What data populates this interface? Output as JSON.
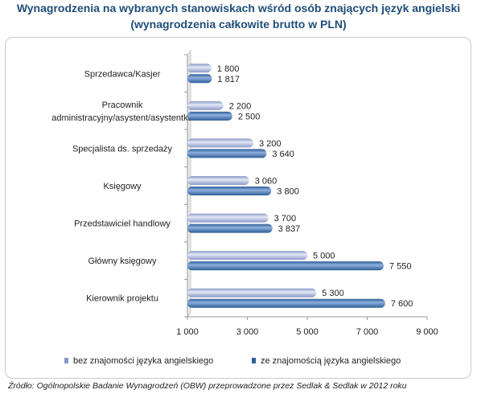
{
  "title_line1": "Wynagrodzenia na wybranych stanowiskach wśród osób znających język angielski",
  "title_line2": "(wynagrodzenia całkowite brutto w PLN)",
  "source": "Źródło: Ogólnopolskie Badanie Wynagrodzeń (OBW) przeprowadzone przez Sedlak & Sedlak w 2012 roku",
  "colors": {
    "series1_dark": "#8b99c6",
    "series1_light": "#e3e8f6",
    "series2_dark": "#2c5d96",
    "series2_light": "#8fb0dd",
    "title": "#1f4e79"
  },
  "chart_data": {
    "type": "bar",
    "orientation": "horizontal",
    "categories": [
      [
        "Sprzedawca/Kasjer"
      ],
      [
        "Pracownik",
        "administracyjny/asystent/asystentka"
      ],
      [
        "Specjalista ds. sprzedaży"
      ],
      [
        "Księgowy"
      ],
      [
        "Przedstawiciel handlowy"
      ],
      [
        "Główny księgowy"
      ],
      [
        "Kierownik projektu"
      ]
    ],
    "series": [
      {
        "name": "bez znajomości języka angielskiego",
        "values": [
          1800,
          2200,
          3200,
          3060,
          3700,
          5000,
          5300
        ],
        "labels": [
          "1 800",
          "2 200",
          "3 200",
          "3 060",
          "3 700",
          "5 000",
          "5 300"
        ]
      },
      {
        "name": "ze znajomością języka angielskiego",
        "values": [
          1817,
          2500,
          3640,
          3800,
          3837,
          7550,
          7600
        ],
        "labels": [
          "1 817",
          "2 500",
          "3 640",
          "3 800",
          "3 837",
          "7 550",
          "7 600"
        ]
      }
    ],
    "xlim": [
      1000,
      9000
    ],
    "xticks": [
      1000,
      3000,
      5000,
      7000,
      9000
    ],
    "xtick_labels": [
      "1 000",
      "3 000",
      "5 000",
      "7 000",
      "9 000"
    ],
    "legend_position": "bottom",
    "grid": false
  }
}
